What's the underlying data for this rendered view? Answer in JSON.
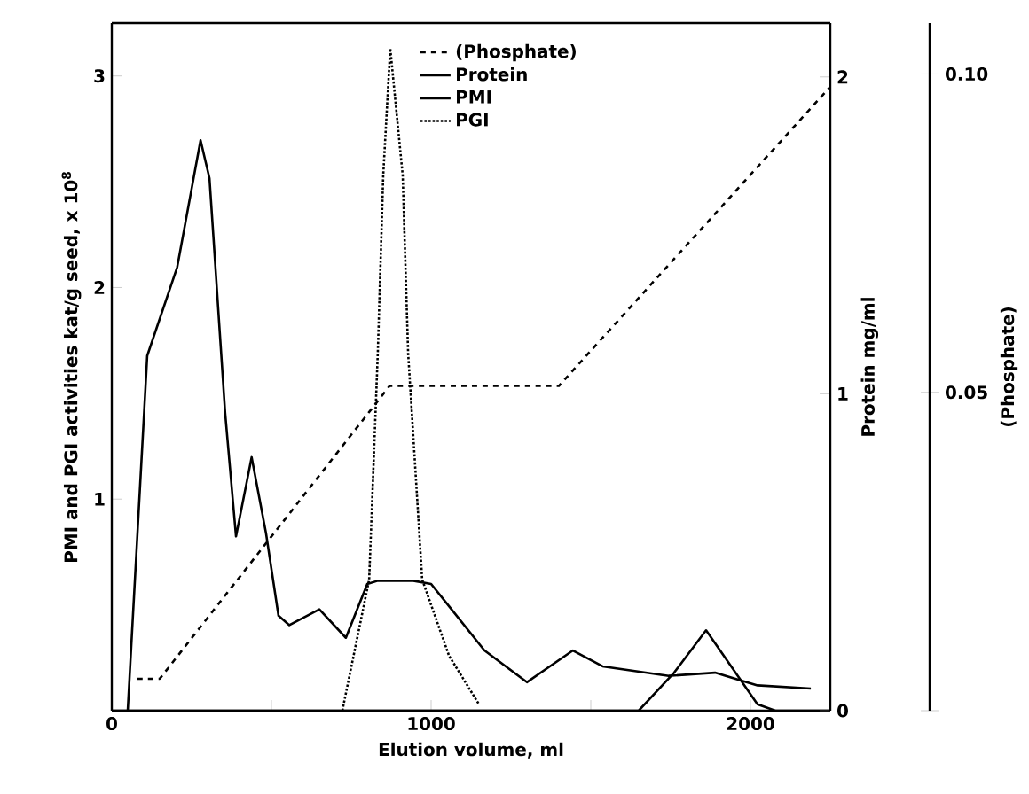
{
  "chart_data": {
    "type": "line",
    "xlabel": "Elution volume, ml",
    "ylabel": "PMI and PGI activities kat/g seed, x 10$^{8}$",
    "y2label": "Protein mg/ml",
    "y3label": "(Phosphate)",
    "xlim": [
      0,
      2250
    ],
    "xticks": [
      0,
      {
        "value": 500,
        "label": null
      },
      1000,
      {
        "value": 1500,
        "label": null
      },
      2000
    ],
    "ylim": [
      0,
      3.25
    ],
    "yticks": [
      1,
      2,
      3
    ],
    "y2lim": [
      0,
      2.17
    ],
    "y2ticks": [
      0,
      1,
      2
    ],
    "y3lim": [
      0,
      0.108
    ],
    "y3ticks": [
      {
        "value": 0,
        "label": null
      },
      0.05,
      {
        "value": 0.1,
        "label": "0.10"
      }
    ],
    "legend": "top",
    "series": [
      {
        "name": "(Phosphate)",
        "color": "#000000",
        "line_style": "dashed",
        "axis": "y3",
        "x": [
          80,
          150,
          870,
          1400,
          2250
        ],
        "values": [
          0.005,
          0.005,
          0.051,
          0.051,
          0.098
        ]
      },
      {
        "name": "Protein",
        "color": "#000000",
        "line_style": "solid",
        "axis": "y2",
        "x": [
          50,
          111,
          205,
          278,
          306,
          355,
          389,
          438,
          483,
          522,
          556,
          650,
          733,
          800,
          833,
          944,
          1000,
          1167,
          1300,
          1444,
          1537,
          1744,
          1889,
          2022,
          2189
        ],
        "values": [
          0,
          1.12,
          1.4,
          1.8,
          1.68,
          0.94,
          0.55,
          0.8,
          0.56,
          0.3,
          0.27,
          0.32,
          0.23,
          0.4,
          0.41,
          0.41,
          0.4,
          0.19,
          0.09,
          0.19,
          0.14,
          0.11,
          0.12,
          0.08,
          0.07
        ]
      },
      {
        "name": "PMI",
        "color": "#000000",
        "line_style": "solid",
        "x": [
          0,
          1650,
          1761,
          1861,
          1944,
          2022,
          2078,
          2250
        ],
        "values": [
          0,
          0,
          0.18,
          0.38,
          0.2,
          0.03,
          0,
          0
        ]
      },
      {
        "name": "PGI",
        "color": "#000000",
        "line_style": "dotted",
        "x": [
          722,
          806,
          833,
          850,
          872,
          911,
          928,
          972,
          1056,
          1150
        ],
        "values": [
          0,
          0.62,
          1.69,
          2.53,
          3.13,
          2.53,
          1.69,
          0.62,
          0.26,
          0.03
        ]
      }
    ]
  }
}
